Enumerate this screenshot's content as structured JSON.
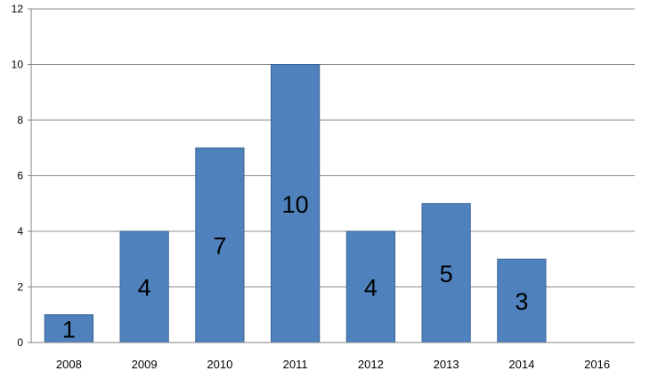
{
  "chart_data": {
    "type": "bar",
    "categories": [
      "2008",
      "2009",
      "2010",
      "2011",
      "2012",
      "2013",
      "2014",
      "2016"
    ],
    "values": [
      1,
      4,
      7,
      10,
      4,
      5,
      3,
      0
    ],
    "data_labels": [
      "1",
      "4",
      "7",
      "10",
      "4",
      "5",
      "3",
      ""
    ],
    "y_ticks": [
      "0",
      "2",
      "4",
      "6",
      "8",
      "10",
      "12"
    ],
    "ylim": [
      0,
      12
    ],
    "grid": true,
    "bar_color": "#4F81BD",
    "bar_edge_color": "#3A6495",
    "grid_color": "#8C8C8C",
    "axis_color": "#868686",
    "label_color": "#000000"
  }
}
